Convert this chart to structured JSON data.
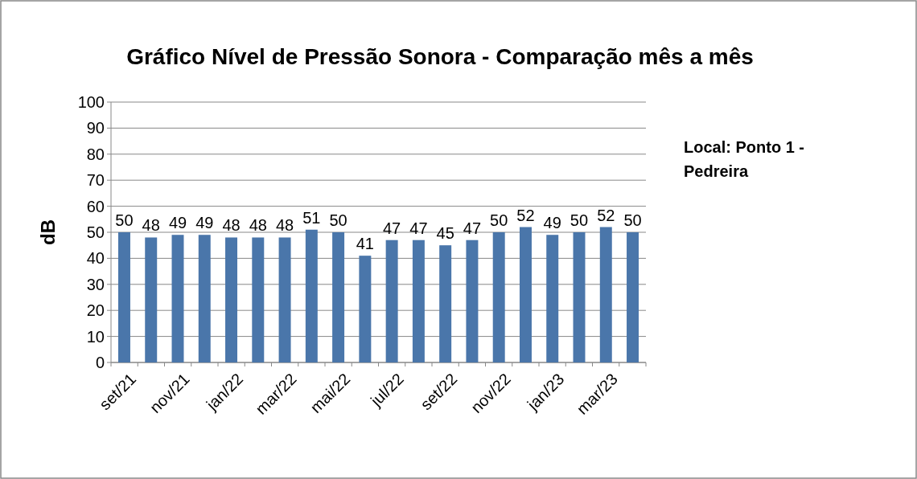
{
  "chart_data": {
    "type": "bar",
    "title": "Gráfico Nível de Pressão Sonora - Comparação mês a mês",
    "ylabel": "dB",
    "categories": [
      "set/21",
      null,
      "nov/21",
      null,
      "jan/22",
      null,
      "mar/22",
      null,
      "mai/22",
      null,
      "jul/22",
      null,
      "set/22",
      null,
      "nov/22",
      null,
      "jan/23",
      null,
      "mar/23",
      null
    ],
    "values": [
      50,
      48,
      49,
      49,
      48,
      48,
      48,
      51,
      50,
      41,
      47,
      47,
      45,
      47,
      50,
      52,
      49,
      50,
      52,
      50
    ],
    "color": "#4a76aa",
    "ylim": [
      0,
      100
    ],
    "yticks": [
      0,
      10,
      20,
      30,
      40,
      50,
      60,
      70,
      80,
      90,
      100
    ],
    "grid": "y",
    "data_labels": true,
    "annotations": [
      "Local: Ponto 1 - Pedreira"
    ]
  }
}
